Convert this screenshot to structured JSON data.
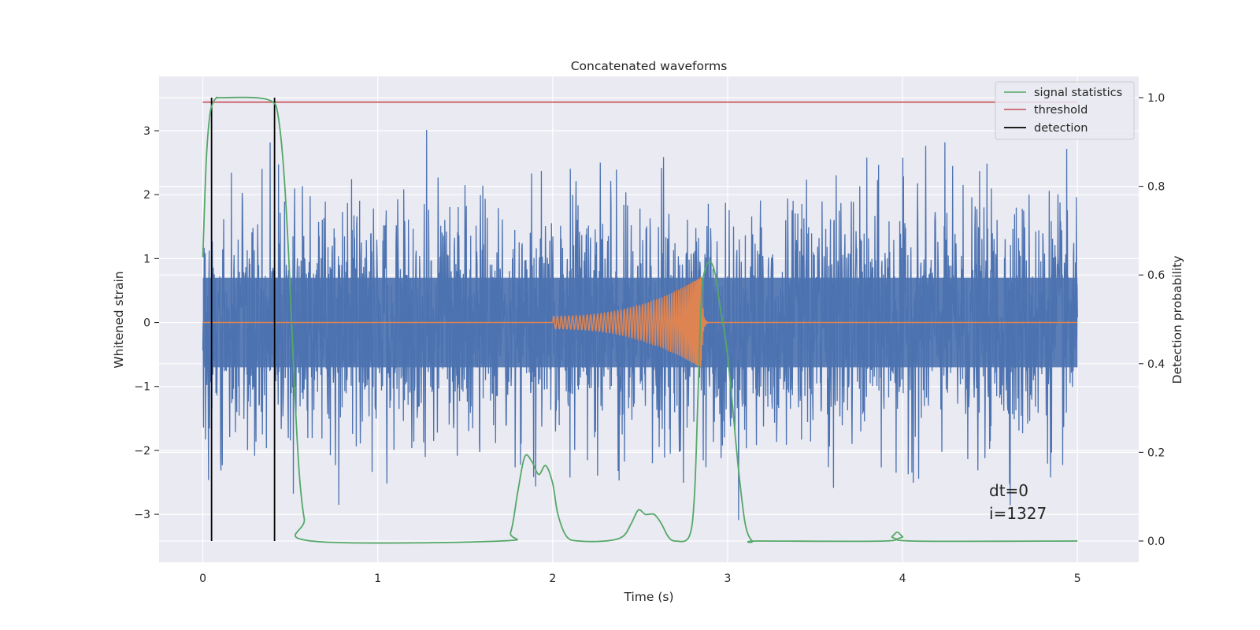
{
  "chart_data": {
    "type": "line",
    "title": "Concatenated waveforms",
    "xlabel": "Time (s)",
    "ylabel": "Whitened strain",
    "y2label": "Detection probability",
    "xlim": [
      -0.25,
      5.35
    ],
    "ylim": [
      -3.75,
      3.85
    ],
    "y2lim": [
      -0.048,
      1.048
    ],
    "x_ticks": [
      0,
      1,
      2,
      3,
      4,
      5
    ],
    "y_ticks": [
      -3,
      -2,
      -1,
      0,
      1,
      2,
      3
    ],
    "y2_ticks": [
      0.0,
      0.2,
      0.4,
      0.6,
      0.8,
      1.0
    ],
    "y2_tick_labels": [
      "0.0",
      "0.2",
      "0.4",
      "0.6",
      "0.8",
      "1.0"
    ],
    "grid": true,
    "legend_position": "top-right",
    "colors": {
      "strain": "#4c72b0",
      "template": "#dd8452",
      "signal_statistics": "#55a868",
      "threshold": "#c44e52",
      "detection": "#000000",
      "plot_background": "#eaeaf2",
      "grid": "#ffffff"
    },
    "series": [
      {
        "name": "",
        "axis": "left",
        "description_key": "strain",
        "x_range": [
          0,
          5
        ],
        "n_points": 2600,
        "envelope_core": 0.7,
        "peak_min": -3.4,
        "peak_max": 3.35
      },
      {
        "name": "",
        "axis": "left",
        "description_key": "template",
        "x_range": [
          2.0,
          2.85
        ],
        "amplitude_start": 0.1,
        "amplitude_end": 0.72,
        "cycles": 55
      },
      {
        "name": "signal statistics",
        "axis": "right",
        "x": [
          0.0,
          0.02,
          0.04,
          0.06,
          0.08,
          0.1,
          0.3,
          0.4,
          0.43,
          0.46,
          0.49,
          0.52,
          0.55,
          0.58,
          0.62,
          1.7,
          1.76,
          1.8,
          1.84,
          1.88,
          1.92,
          1.96,
          2.0,
          2.03,
          2.08,
          2.15,
          2.3,
          2.4,
          2.45,
          2.49,
          2.53,
          2.58,
          2.62,
          2.66,
          2.7,
          2.78,
          2.81,
          2.83,
          2.85,
          2.87,
          2.9,
          2.93,
          2.96,
          2.99,
          3.02,
          3.06,
          3.1,
          3.14,
          3.18,
          3.9,
          3.94,
          3.97,
          4.0,
          4.05,
          5.0
        ],
        "y": [
          0.64,
          0.86,
          0.96,
          0.99,
          1.0,
          1.0,
          1.0,
          0.99,
          0.96,
          0.85,
          0.65,
          0.38,
          0.16,
          0.05,
          0.0,
          0.0,
          0.02,
          0.11,
          0.19,
          0.18,
          0.15,
          0.17,
          0.13,
          0.06,
          0.01,
          0.0,
          0.0,
          0.01,
          0.04,
          0.07,
          0.06,
          0.06,
          0.04,
          0.01,
          0.0,
          0.01,
          0.1,
          0.32,
          0.55,
          0.61,
          0.63,
          0.6,
          0.52,
          0.45,
          0.34,
          0.17,
          0.04,
          0.0,
          0.0,
          0.0,
          0.01,
          0.02,
          0.01,
          0.0,
          0.0
        ]
      },
      {
        "name": "threshold",
        "axis": "right",
        "x": [
          0,
          5
        ],
        "y": [
          0.99,
          0.99
        ]
      },
      {
        "name": "detection",
        "axis": "right",
        "x": [
          0.05,
          0.41
        ],
        "y_span": [
          0.0,
          1.0
        ]
      }
    ],
    "annotations": [
      "dt=0",
      "i=1327"
    ]
  }
}
